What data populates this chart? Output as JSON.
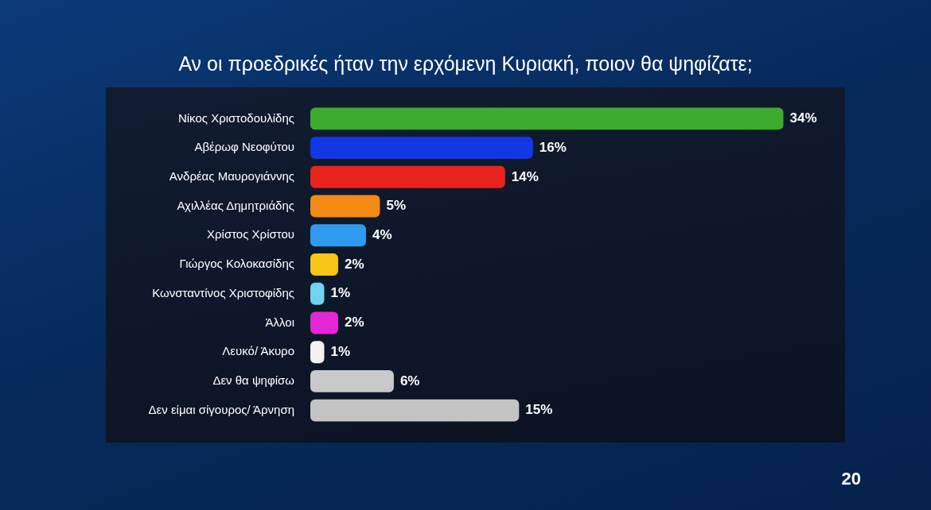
{
  "chart_data": {
    "type": "bar",
    "orientation": "horizontal",
    "title": "Αν οι προεδρικές ήταν την ερχόμενη Κυριακή, ποιον θα ψηφίζατε;",
    "categories": [
      "Νίκος Χριστοδουλίδης",
      "Αβέρωφ Νεοφύτου",
      "Ανδρέας Μαυρογιάννης",
      "Αχιλλέας Δημητριάδης",
      "Χρίστος Χρίστου",
      "Γιώργος Κολοκασίδης",
      "Κωνσταντίνος Χριστοφίδης",
      "Άλλοι",
      "Λευκό/ Άκυρο",
      "Δεν θα ψηφίσω",
      "Δεν είμαι σίγουρος/ Άρνηση"
    ],
    "values": [
      34,
      16,
      14,
      5,
      4,
      2,
      1,
      2,
      1,
      6,
      15
    ],
    "value_labels": [
      "34%",
      "16%",
      "14%",
      "5%",
      "4%",
      "2%",
      "1%",
      "2%",
      "1%",
      "6%",
      "15%"
    ],
    "colors": [
      "#3cab2e",
      "#1437e6",
      "#e8231c",
      "#f28a14",
      "#2f9bf0",
      "#f5c518",
      "#6fd3f2",
      "#e426d6",
      "#f2f2f2",
      "#c9c9c9",
      "#c4c4c4"
    ],
    "annotations": [
      "20"
    ]
  }
}
